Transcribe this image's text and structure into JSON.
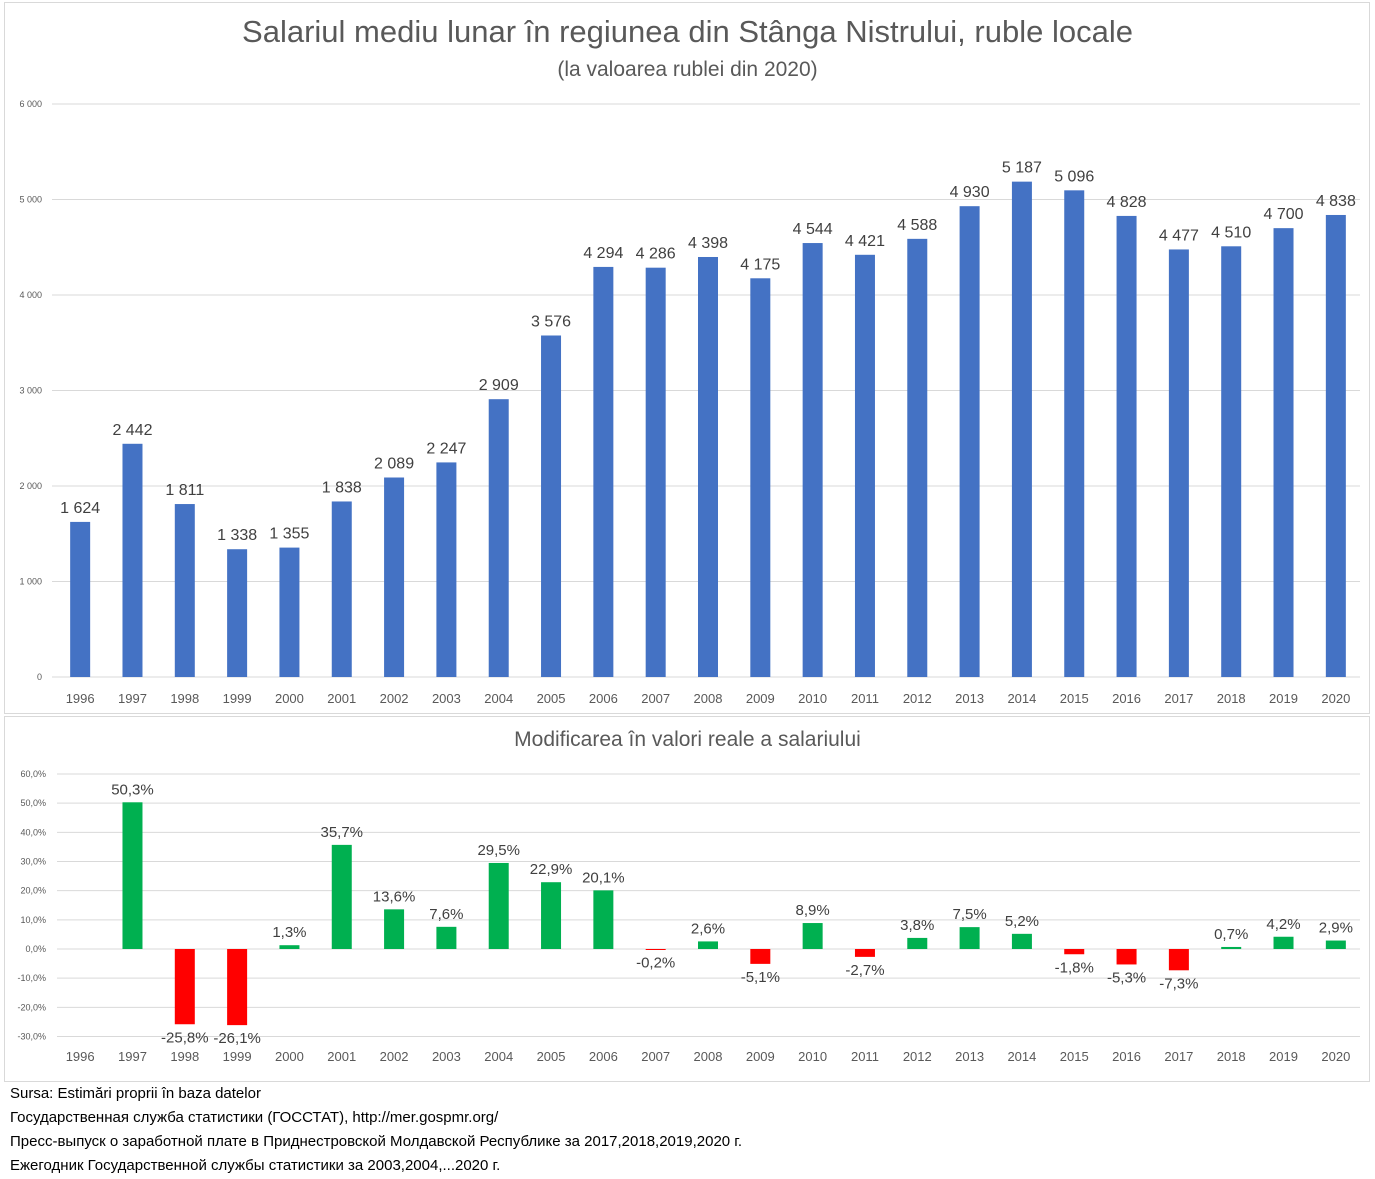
{
  "chart_data": [
    {
      "type": "bar",
      "title": "Salariul mediu lunar în regiunea din Stânga Nistrului, ruble locale",
      "subtitle": "(la valoarea rublei din 2020)",
      "xlabel": "",
      "ylabel": "",
      "ylim": [
        0,
        6000
      ],
      "grid": true,
      "legend": "none",
      "color": "#4472c4",
      "yticks": [
        "0",
        "1 000",
        "2 000",
        "3 000",
        "4 000",
        "5 000",
        "6 000"
      ],
      "ytick_values": [
        0,
        1000,
        2000,
        3000,
        4000,
        5000,
        6000
      ],
      "categories": [
        "1996",
        "1997",
        "1998",
        "1999",
        "2000",
        "2001",
        "2002",
        "2003",
        "2004",
        "2005",
        "2006",
        "2007",
        "2008",
        "2009",
        "2010",
        "2011",
        "2012",
        "2013",
        "2014",
        "2015",
        "2016",
        "2017",
        "2018",
        "2019",
        "2020"
      ],
      "values": [
        1624,
        2442,
        1811,
        1338,
        1355,
        1838,
        2089,
        2247,
        2909,
        3576,
        4294,
        4286,
        4398,
        4175,
        4544,
        4421,
        4588,
        4930,
        5187,
        5096,
        4828,
        4477,
        4510,
        4700,
        4838
      ],
      "labels": [
        "1 624",
        "2 442",
        "1 811",
        "1 338",
        "1 355",
        "1 838",
        "2 089",
        "2 247",
        "2 909",
        "3 576",
        "4 294",
        "4 286",
        "4 398",
        "4 175",
        "4 544",
        "4 421",
        "4 588",
        "4 930",
        "5 187",
        "5 096",
        "4 828",
        "4 477",
        "4 510",
        "4 700",
        "4 838"
      ]
    },
    {
      "type": "bar",
      "title": "Modificarea în valori reale a salariului",
      "xlabel": "",
      "ylabel": "",
      "ylim": [
        -30,
        60
      ],
      "grid": true,
      "legend": "none",
      "positive_color": "#00b050",
      "negative_color": "#ff0000",
      "yticks": [
        "-30,0%",
        "-20,0%",
        "-10,0%",
        "0,0%",
        "10,0%",
        "20,0%",
        "30,0%",
        "40,0%",
        "50,0%",
        "60,0%"
      ],
      "ytick_values": [
        -30,
        -20,
        -10,
        0,
        10,
        20,
        30,
        40,
        50,
        60
      ],
      "categories": [
        "1996",
        "1997",
        "1998",
        "1999",
        "2000",
        "2001",
        "2002",
        "2003",
        "2004",
        "2005",
        "2006",
        "2007",
        "2008",
        "2009",
        "2010",
        "2011",
        "2012",
        "2013",
        "2014",
        "2015",
        "2016",
        "2017",
        "2018",
        "2019",
        "2020"
      ],
      "values": [
        null,
        50.3,
        -25.8,
        -26.1,
        1.3,
        35.7,
        13.6,
        7.6,
        29.5,
        22.9,
        20.1,
        -0.2,
        2.6,
        -5.1,
        8.9,
        -2.7,
        3.8,
        7.5,
        5.2,
        -1.8,
        -5.3,
        -7.3,
        0.7,
        4.2,
        2.9
      ],
      "labels": [
        "",
        "50,3%",
        "-25,8%",
        "-26,1%",
        "1,3%",
        "35,7%",
        "13,6%",
        "7,6%",
        "29,5%",
        "22,9%",
        "20,1%",
        "-0,2%",
        "2,6%",
        "-5,1%",
        "8,9%",
        "-2,7%",
        "3,8%",
        "7,5%",
        "5,2%",
        "-1,8%",
        "-5,3%",
        "-7,3%",
        "0,7%",
        "4,2%",
        "2,9%"
      ]
    }
  ],
  "source": {
    "lines": [
      "Sursa: Estimări proprii în baza datelor",
      "Государственная служба статистики (ГОССТАТ), http://mer.gospmr.org/",
      "Пресс-выпуск о заработной плате в Приднестровской Молдавской Республике за 2017,2018,2019,2020 г.",
      "Ежегодник Государственной службы статистики за 2003,2004,...2020 г."
    ]
  }
}
